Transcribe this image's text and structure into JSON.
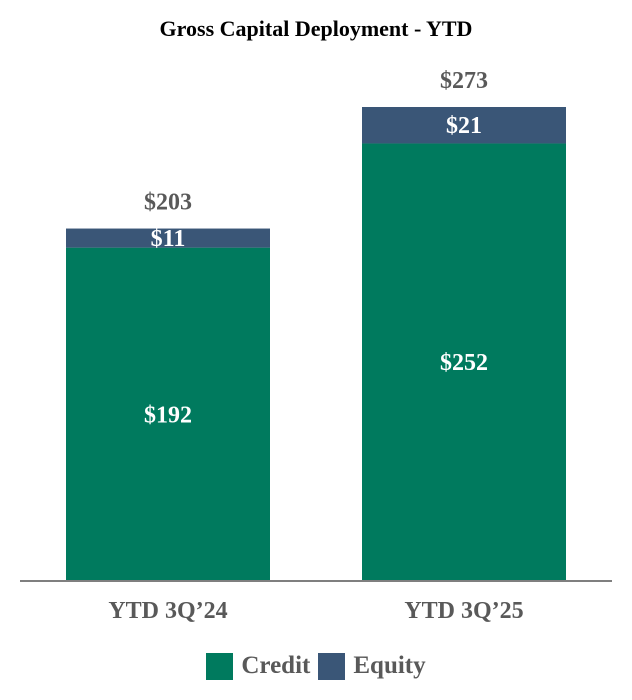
{
  "chart_data": {
    "type": "bar",
    "stacked": true,
    "title": "Gross Capital Deployment - YTD",
    "categories": [
      "YTD 3Q’24",
      "YTD 3Q’25"
    ],
    "series": [
      {
        "name": "Credit",
        "values": [
          192,
          252
        ],
        "labels": [
          "$192",
          "$252"
        ],
        "color": "#007A5E"
      },
      {
        "name": "Equity",
        "values": [
          11,
          21
        ],
        "labels": [
          "$11",
          "$21"
        ],
        "color": "#3A5677"
      }
    ],
    "totals": [
      203,
      273
    ],
    "total_labels": [
      "$203",
      "$273"
    ],
    "ylim": [
      0,
      273
    ],
    "grid": false,
    "legend": "bottom"
  }
}
